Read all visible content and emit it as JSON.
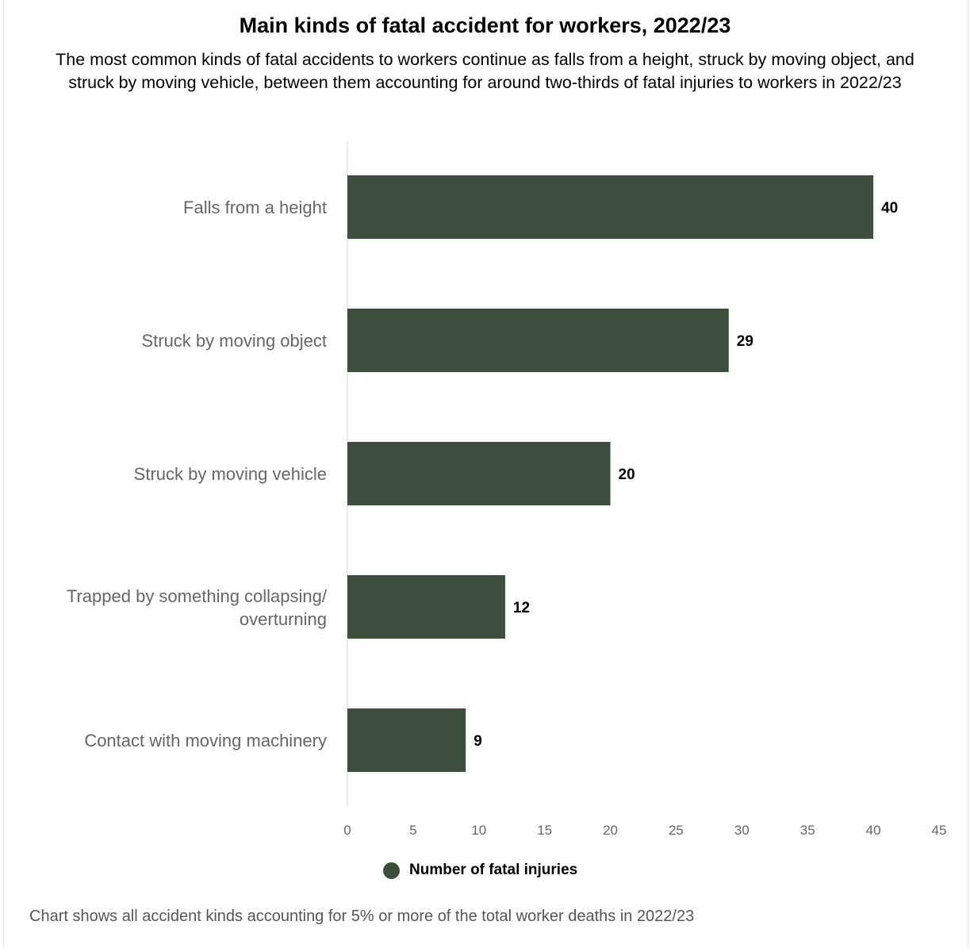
{
  "chart_data": {
    "type": "bar",
    "orientation": "horizontal",
    "title": "Main kinds of fatal accident for workers, 2022/23",
    "subtitle": "The most common kinds of fatal accidents to workers continue as falls from a height, struck by moving object, and struck by moving vehicle, between them accounting for around two-thirds of fatal injuries to workers in 2022/23",
    "categories": [
      "Falls from a height",
      "Struck by moving object",
      "Struck by moving vehicle",
      "Trapped by something collapsing/ overturning",
      "Contact with moving machinery"
    ],
    "series": [
      {
        "name": "Number of fatal injuries",
        "values": [
          40,
          29,
          20,
          12,
          9
        ],
        "color": "#3c4f3c"
      }
    ],
    "xlim": [
      0,
      45
    ],
    "xticks": [
      0,
      5,
      10,
      15,
      20,
      25,
      30,
      35,
      40,
      45
    ],
    "grid": false,
    "legend": "bottom-center",
    "footnote": "Chart shows all accident kinds accounting for 5% or more of the total worker deaths in 2022/23"
  }
}
